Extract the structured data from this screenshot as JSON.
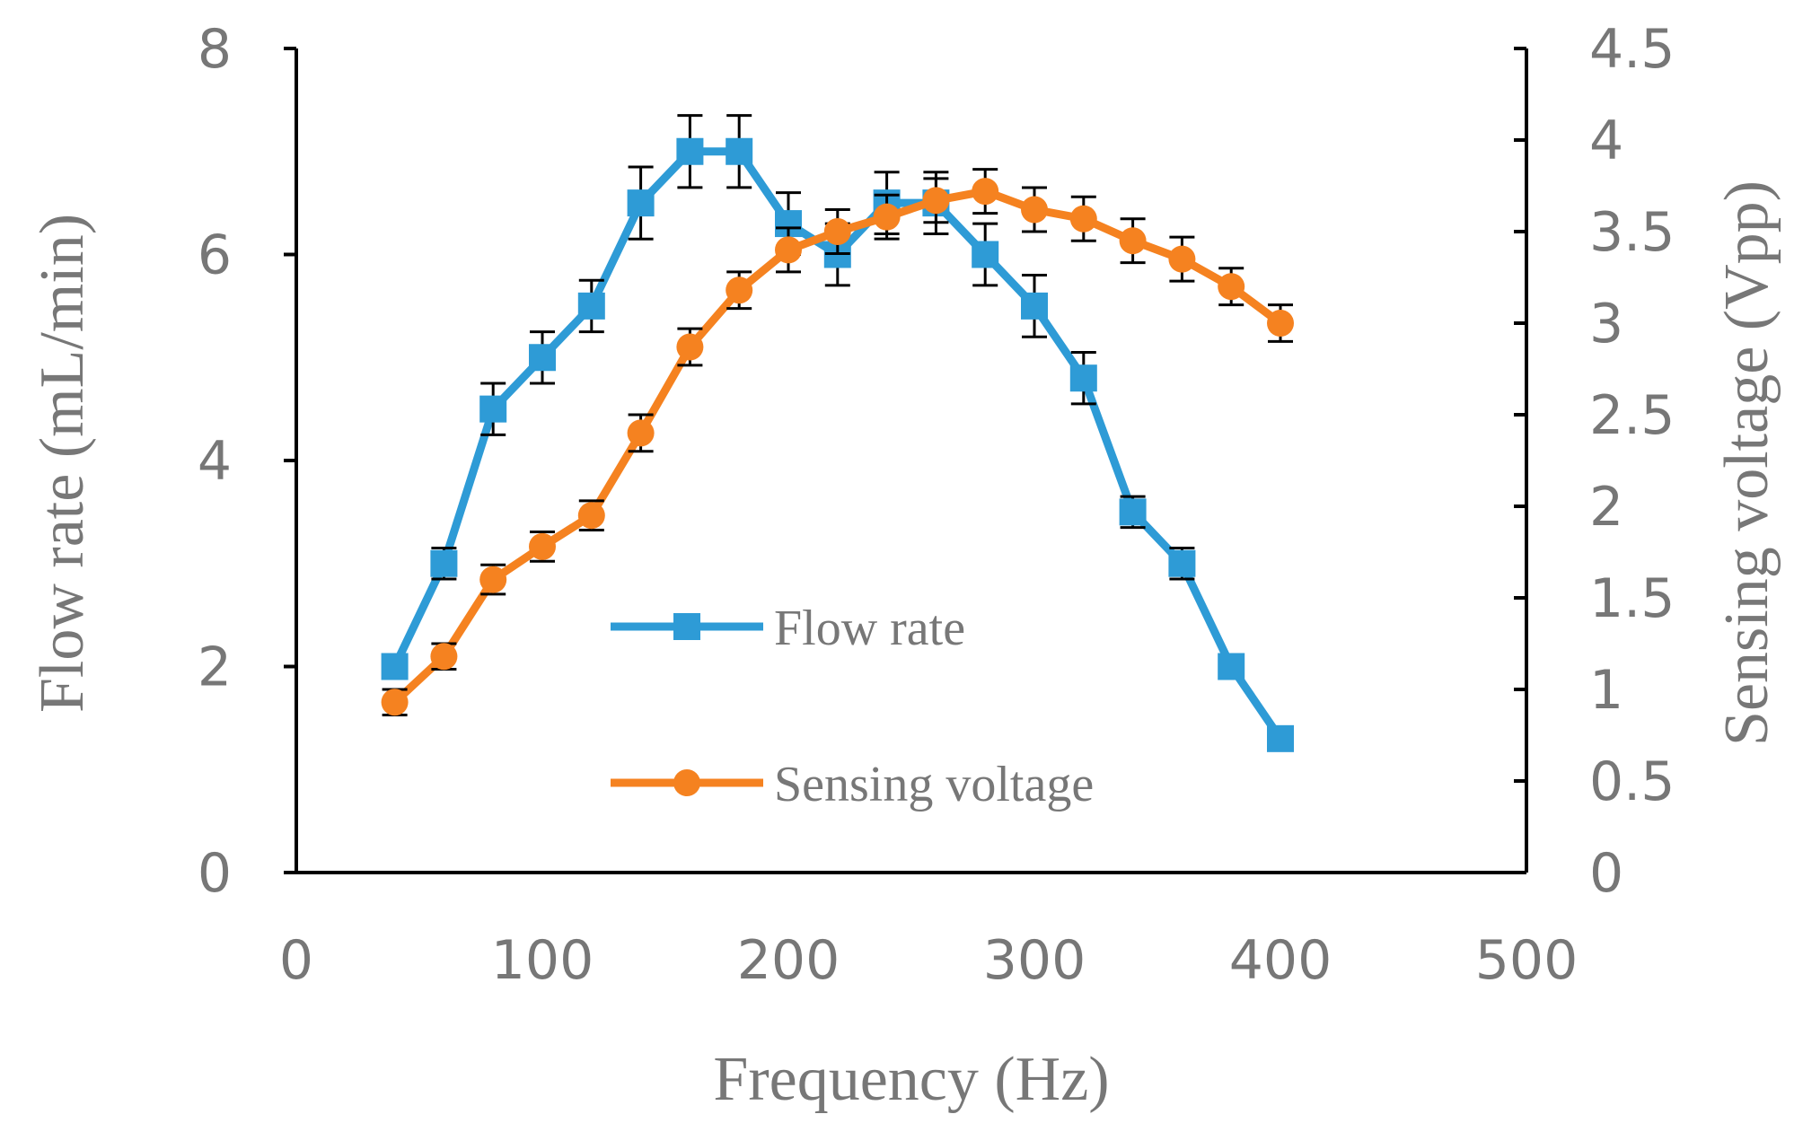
{
  "chart_data": {
    "type": "line",
    "title": "",
    "xlabel": "Frequency (Hz)",
    "ylabel_left": "Flow rate (mL/min)",
    "ylabel_right": "Sensing voltage (Vpp)",
    "xlim": [
      0,
      500
    ],
    "ylim_left": [
      0,
      8
    ],
    "ylim_right": [
      0,
      4.5
    ],
    "x_ticks": [
      "0",
      "100",
      "200",
      "300",
      "400",
      "500"
    ],
    "y_left_ticks": [
      "0",
      "2",
      "4",
      "6",
      "8"
    ],
    "y_right_ticks": [
      "0",
      "0.5",
      "1",
      "1.5",
      "2",
      "2.5",
      "3",
      "3.5",
      "4",
      "4.5"
    ],
    "x": [
      40,
      60,
      80,
      100,
      120,
      140,
      160,
      180,
      200,
      220,
      240,
      260,
      280,
      300,
      320,
      340,
      360,
      380,
      400
    ],
    "series": [
      {
        "name": "Flow rate",
        "axis": "left",
        "marker": "square",
        "color": "#2e9bd6",
        "values": [
          2.0,
          3.0,
          4.5,
          5.0,
          5.5,
          6.5,
          7.0,
          7.0,
          6.3,
          6.0,
          6.5,
          6.5,
          6.0,
          5.5,
          4.8,
          3.5,
          3.0,
          2.0,
          1.3
        ],
        "errors": [
          0.1,
          0.15,
          0.25,
          0.25,
          0.25,
          0.35,
          0.35,
          0.35,
          0.3,
          0.3,
          0.3,
          0.3,
          0.3,
          0.3,
          0.25,
          0.15,
          0.15,
          0.1,
          0.1
        ]
      },
      {
        "name": "Sensing voltage",
        "axis": "right",
        "marker": "circle",
        "color": "#f58220",
        "values": [
          0.93,
          1.18,
          1.6,
          1.78,
          1.95,
          2.4,
          2.87,
          3.18,
          3.4,
          3.5,
          3.58,
          3.67,
          3.72,
          3.62,
          3.57,
          3.45,
          3.35,
          3.2,
          3.0
        ],
        "errors": [
          0.07,
          0.07,
          0.08,
          0.08,
          0.08,
          0.1,
          0.1,
          0.1,
          0.12,
          0.12,
          0.12,
          0.12,
          0.12,
          0.12,
          0.12,
          0.12,
          0.12,
          0.1,
          0.1
        ]
      }
    ],
    "legend": {
      "placement": "center",
      "entries": [
        "Flow rate",
        "Sensing voltage"
      ]
    },
    "grid": false
  }
}
